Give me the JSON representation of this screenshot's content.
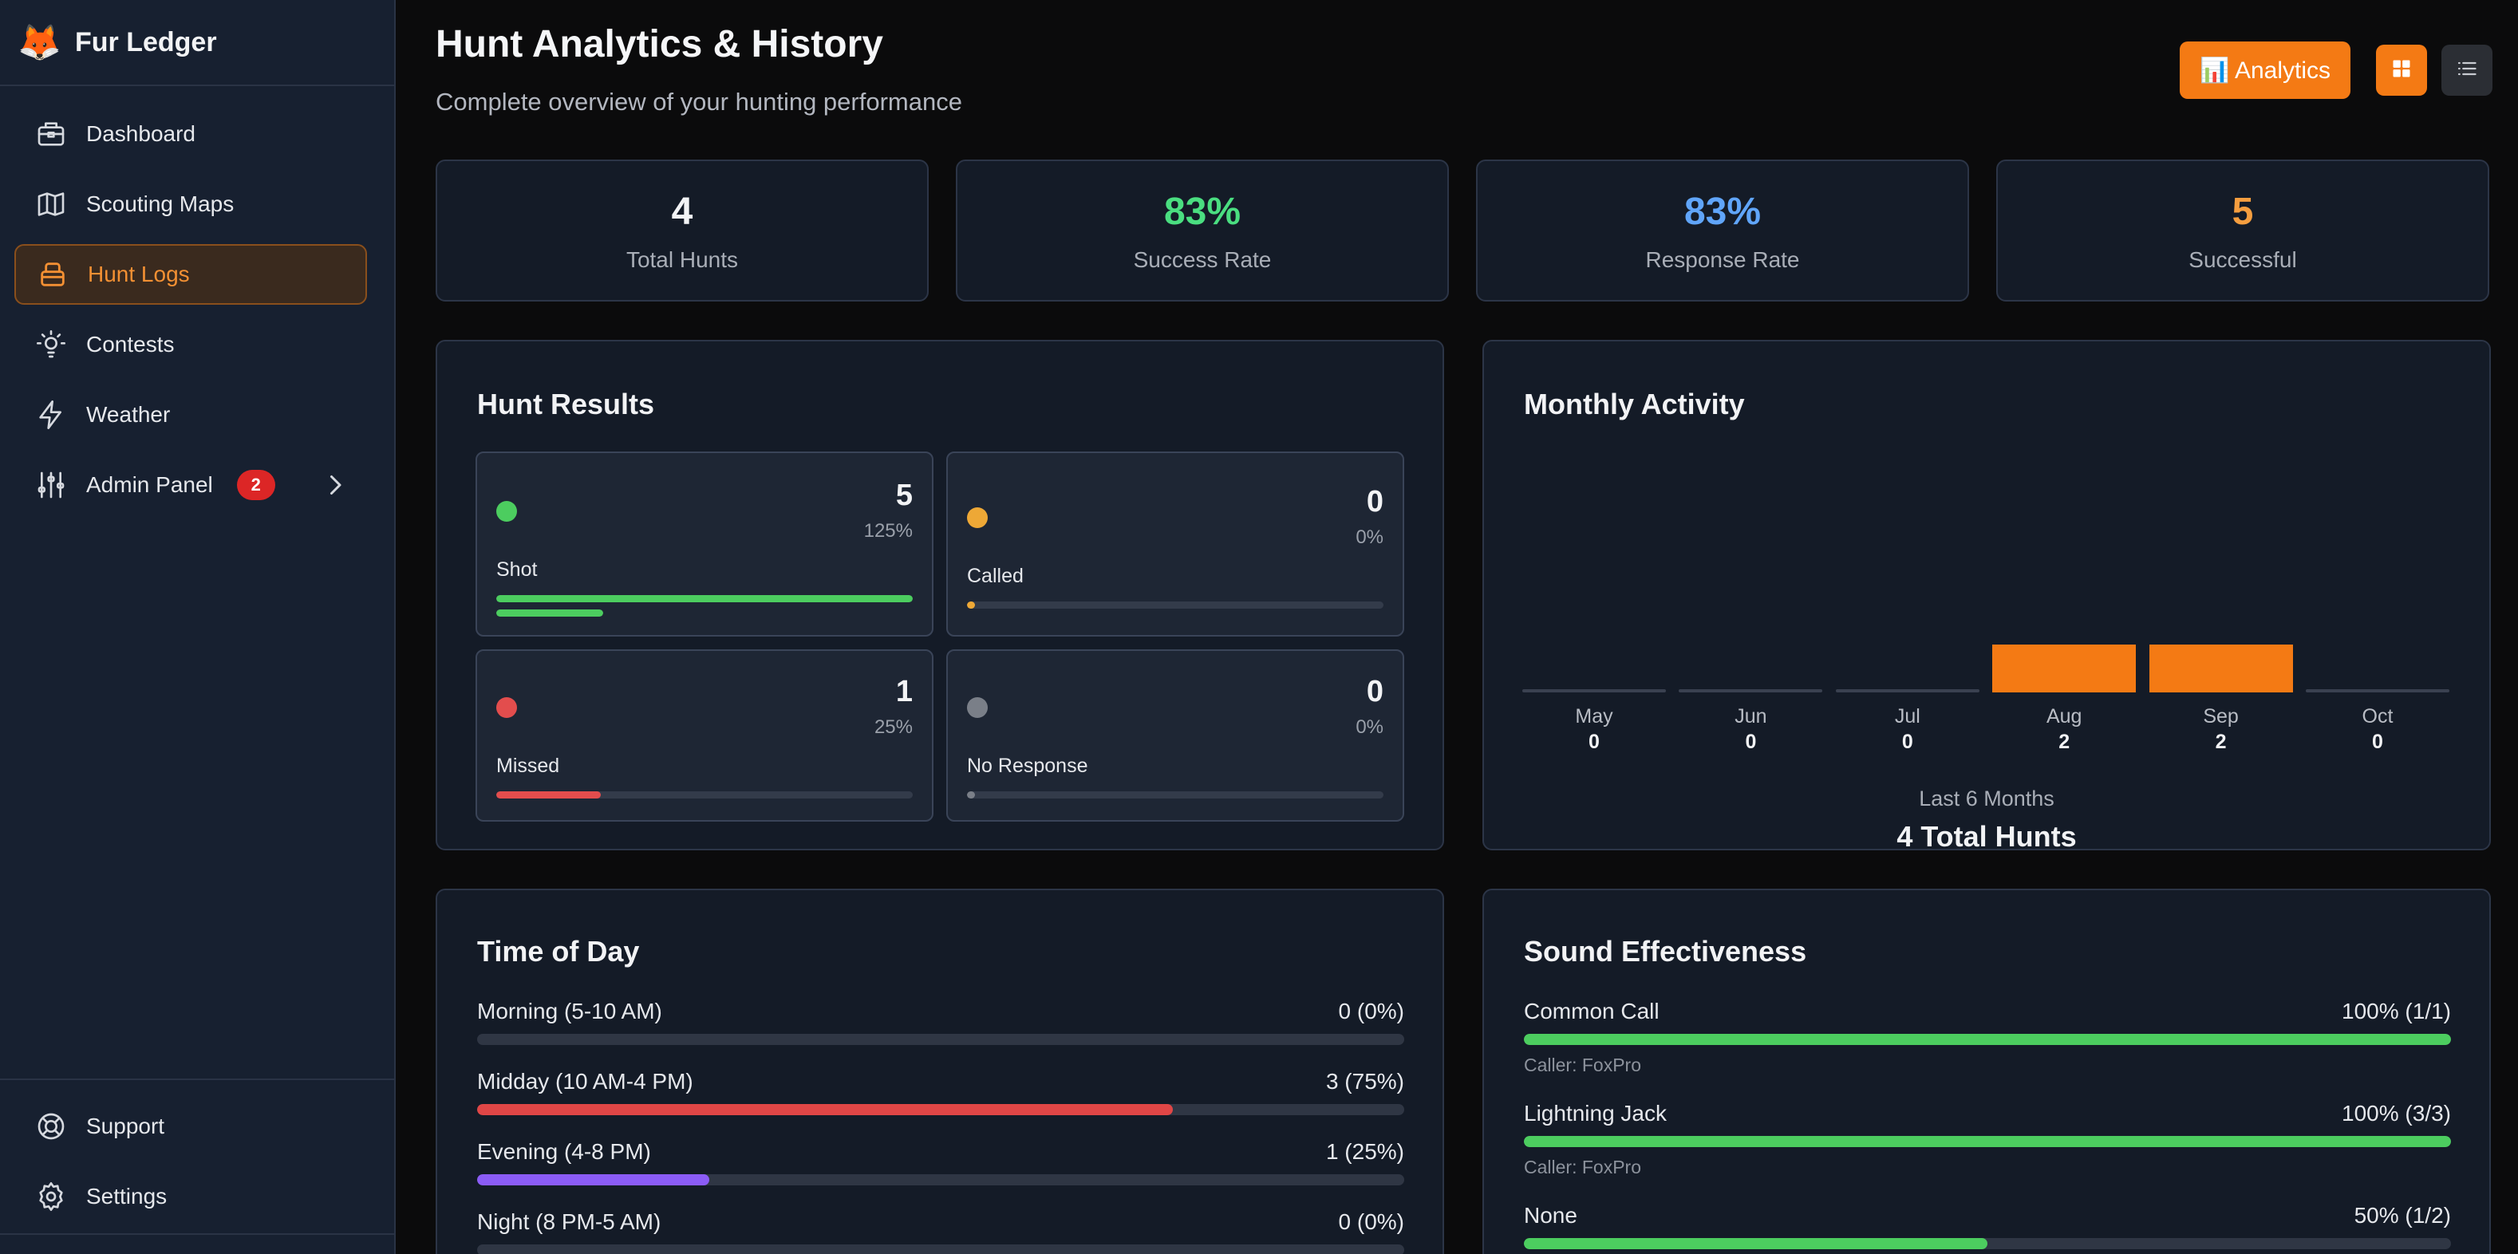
{
  "app": {
    "name": "Fur Ledger",
    "logo_icon": "fox-icon"
  },
  "sidebar": {
    "items": [
      {
        "label": "Dashboard",
        "icon": "briefcase-icon",
        "active": false
      },
      {
        "label": "Scouting Maps",
        "icon": "map-icon",
        "active": false
      },
      {
        "label": "Hunt Logs",
        "icon": "package-icon",
        "active": true
      },
      {
        "label": "Contests",
        "icon": "lightbulb-icon",
        "active": false
      },
      {
        "label": "Weather",
        "icon": "lightning-icon",
        "active": false
      },
      {
        "label": "Admin Panel",
        "icon": "sliders-icon",
        "active": false,
        "badge": "2"
      }
    ],
    "bottom_items": [
      {
        "label": "Support",
        "icon": "lifebuoy-icon"
      },
      {
        "label": "Settings",
        "icon": "gear-icon"
      }
    ]
  },
  "header": {
    "title": "Hunt Analytics & History",
    "subtitle": "Complete overview of your hunting performance",
    "analytics_button": "📊 Analytics",
    "view_grid_icon": "grid-icon",
    "view_list_icon": "list-icon"
  },
  "stats": [
    {
      "value": "4",
      "label": "Total Hunts",
      "color": "#f2f3f5"
    },
    {
      "value": "83%",
      "label": "Success Rate",
      "color": "#4ade80"
    },
    {
      "value": "83%",
      "label": "Response Rate",
      "color": "#60a5fa"
    },
    {
      "value": "5",
      "label": "Successful",
      "color": "#f59e3f"
    }
  ],
  "hunt_results": {
    "title": "Hunt Results",
    "tiles": [
      {
        "label": "Shot",
        "count": "5",
        "pct": "125%",
        "fraction": 1.25,
        "color": "#4ccd5f"
      },
      {
        "label": "Called",
        "count": "0",
        "pct": "0%",
        "fraction": 0,
        "color": "#eea836"
      },
      {
        "label": "Missed",
        "count": "1",
        "pct": "25%",
        "fraction": 0.25,
        "color": "#e34d4d"
      },
      {
        "label": "No Response",
        "count": "0",
        "pct": "0%",
        "fraction": 0,
        "color": "#7a7f88"
      }
    ]
  },
  "monthly_activity": {
    "title": "Monthly Activity",
    "footer_label": "Last 6 Months",
    "footer_total": "4 Total Hunts"
  },
  "chart_data": {
    "type": "bar",
    "title": "Monthly Activity",
    "categories": [
      "May",
      "Jun",
      "Jul",
      "Aug",
      "Sep",
      "Oct"
    ],
    "values": [
      0,
      0,
      0,
      2,
      2,
      0
    ],
    "color": "#f47a14"
  },
  "time_of_day": {
    "title": "Time of Day",
    "rows": [
      {
        "label": "Morning (5-10 AM)",
        "value": "0 (0%)",
        "fraction": 0,
        "color": "#f0a030"
      },
      {
        "label": "Midday (10 AM-4 PM)",
        "value": "3 (75%)",
        "fraction": 0.75,
        "color": "#e04646"
      },
      {
        "label": "Evening (4-8 PM)",
        "value": "1 (25%)",
        "fraction": 0.25,
        "color": "#8b5cf6"
      },
      {
        "label": "Night (8 PM-5 AM)",
        "value": "0 (0%)",
        "fraction": 0,
        "color": "#3b82f6"
      }
    ]
  },
  "sound_effectiveness": {
    "title": "Sound Effectiveness",
    "rows": [
      {
        "label": "Common Call",
        "value": "100% (1/1)",
        "fraction": 1.0,
        "caller": "Caller: FoxPro",
        "color": "#4ccd5f"
      },
      {
        "label": "Lightning Jack",
        "value": "100% (3/3)",
        "fraction": 1.0,
        "caller": "Caller: FoxPro",
        "color": "#4ccd5f"
      },
      {
        "label": "None",
        "value": "50% (1/2)",
        "fraction": 0.5,
        "caller": "",
        "color": "#4ccd5f"
      }
    ]
  }
}
